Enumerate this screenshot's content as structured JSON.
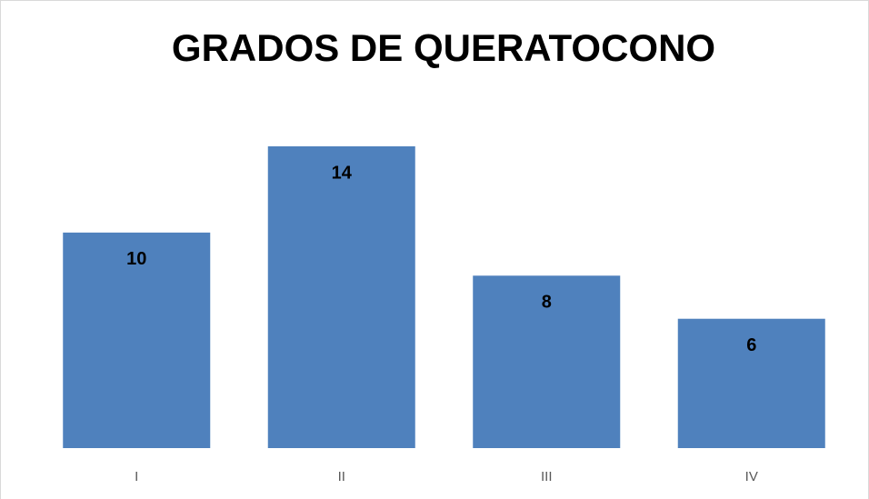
{
  "chart_data": {
    "type": "bar",
    "title": "GRADOS DE QUERATOCONO",
    "categories": [
      "I",
      "II",
      "III",
      "IV"
    ],
    "values": [
      10,
      14,
      8,
      6
    ],
    "color": "#4f81bd"
  }
}
